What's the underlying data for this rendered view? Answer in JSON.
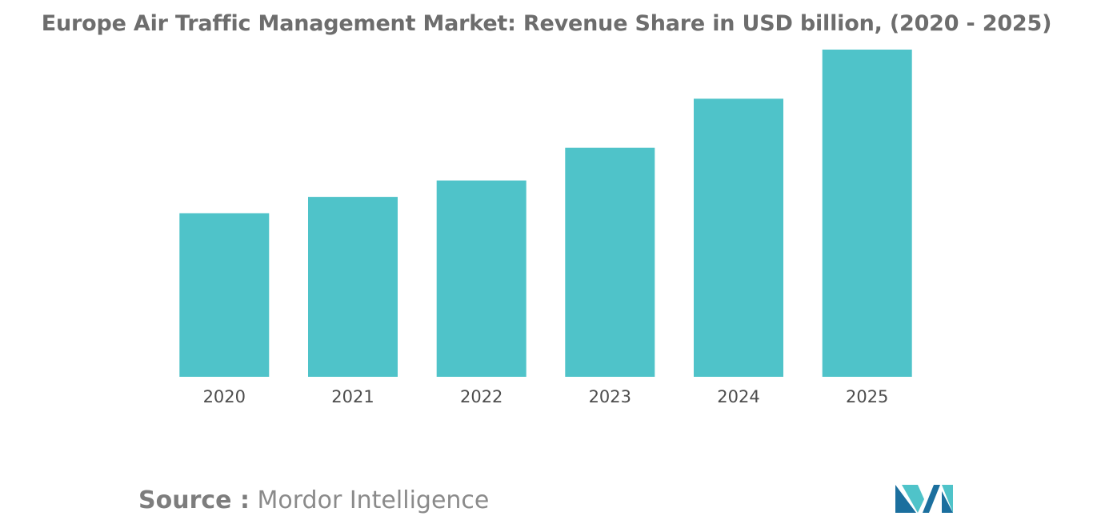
{
  "chart_data": {
    "type": "bar",
    "title": "Europe Air Traffic Management Market: Revenue Share in USD billion, (2020 - 2025)",
    "categories": [
      "2020",
      "2021",
      "2022",
      "2023",
      "2024",
      "2025"
    ],
    "values": [
      5.0,
      5.5,
      6.0,
      7.0,
      8.5,
      10.0
    ],
    "xlabel": "",
    "ylabel": "",
    "ylim": [
      0,
      10
    ],
    "grid": false,
    "legend": "none",
    "bar_color": "#4fc3c9"
  },
  "source": {
    "label": "Source :",
    "text": "Mordor Intelligence"
  },
  "logo": {
    "icon": "mordor-intelligence-logo-icon",
    "colors": [
      "#1b6f9e",
      "#4fc3c9"
    ]
  }
}
